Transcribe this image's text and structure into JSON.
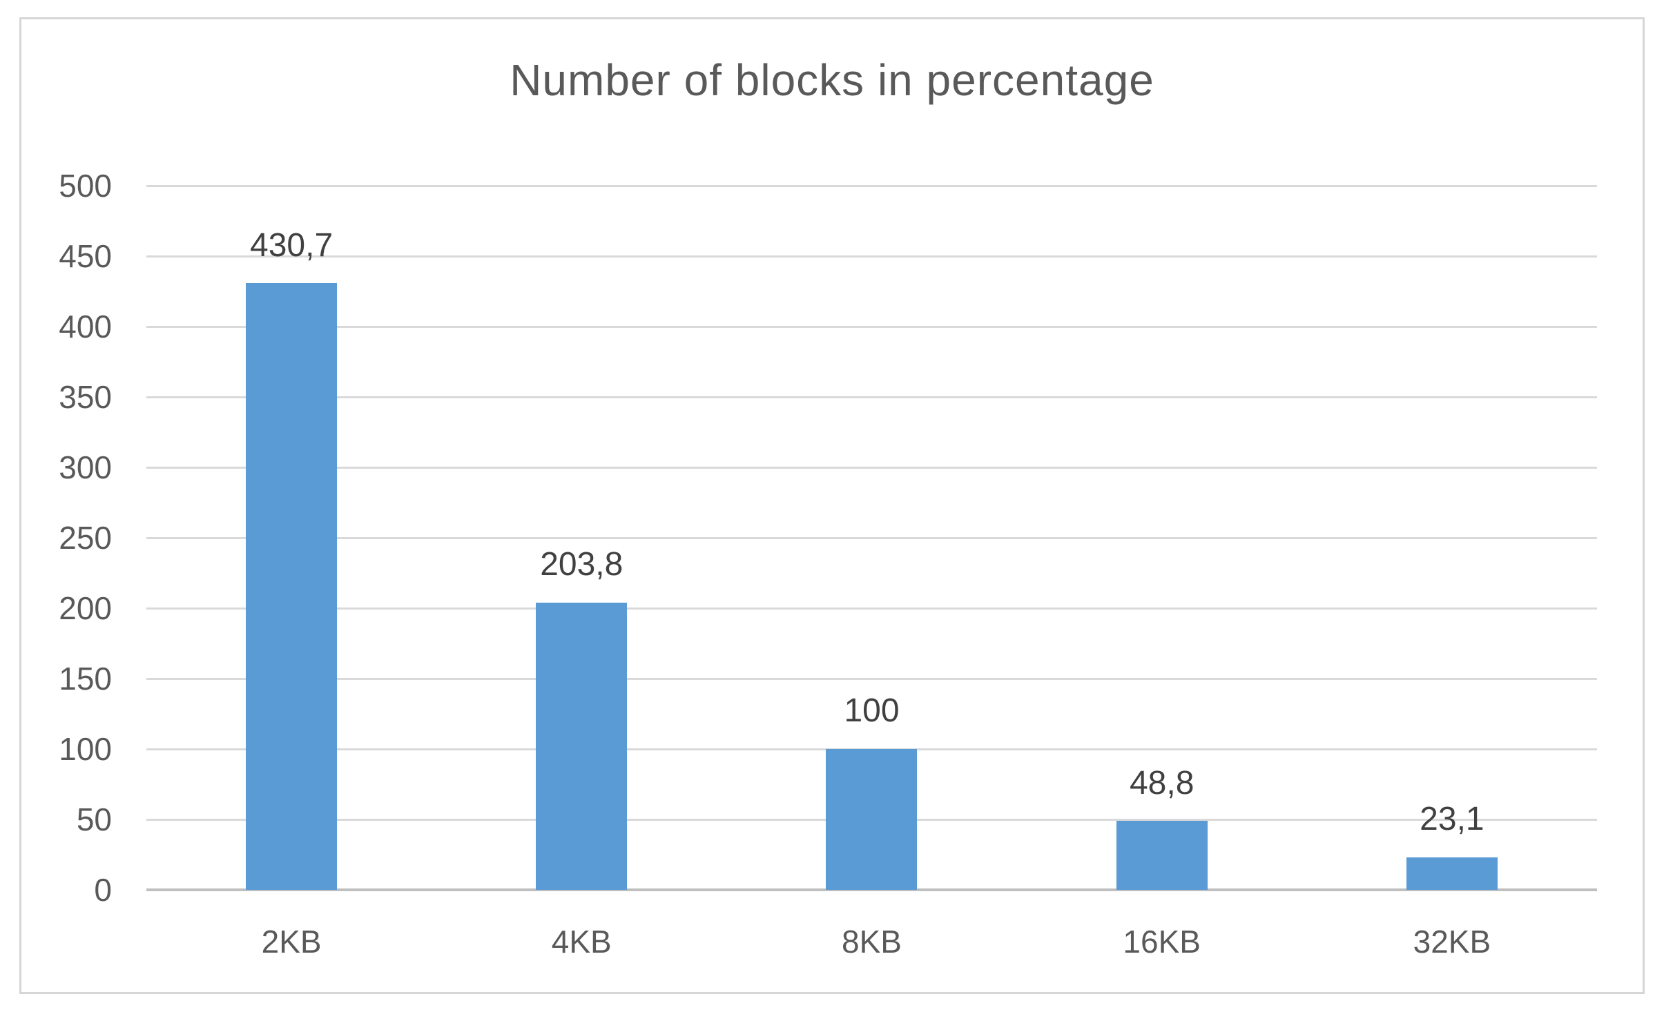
{
  "chart_data": {
    "type": "bar",
    "title": "Number of blocks in percentage",
    "categories": [
      "2KB",
      "4KB",
      "8KB",
      "16KB",
      "32KB"
    ],
    "values": [
      430.7,
      203.8,
      100,
      48.8,
      23.1
    ],
    "value_labels": [
      "430,7",
      "203,8",
      "100",
      "48,8",
      "23,1"
    ],
    "series": [
      {
        "name": "Number of blocks in percentage",
        "values": [
          430.7,
          203.8,
          100,
          48.8,
          23.1
        ]
      }
    ],
    "y_ticks": [
      0,
      50,
      100,
      150,
      200,
      250,
      300,
      350,
      400,
      450,
      500
    ],
    "y_tick_labels": [
      "0",
      "50",
      "100",
      "150",
      "200",
      "250",
      "300",
      "350",
      "400",
      "450",
      "500"
    ],
    "ylim": [
      0,
      500
    ],
    "xlabel": "",
    "ylabel": "",
    "grid": true,
    "legend": false,
    "colors": {
      "bar": "#5B9BD5",
      "gridline": "#D9D9D9",
      "axis_line": "#BFBFBF",
      "title_text": "#595959",
      "tick_text": "#595959",
      "value_label_text": "#404040",
      "frame_border": "#D6D6D6",
      "background": "#FFFFFF"
    }
  }
}
